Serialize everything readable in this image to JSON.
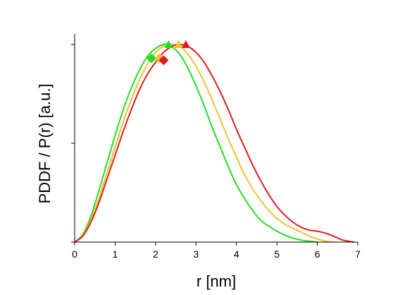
{
  "chart_data": {
    "type": "line",
    "title": "",
    "xlabel": "r [nm]",
    "ylabel": "PDDF / P(r) [a.u.]",
    "xlim": [
      0,
      7
    ],
    "ylim": [
      0,
      1
    ],
    "x_ticks": [
      0,
      1,
      2,
      3,
      4,
      5,
      6,
      7
    ],
    "x_tick_labels": [
      "0",
      "1",
      "2",
      "3",
      "4",
      "5",
      "6",
      "7"
    ],
    "y_ticks": [
      0,
      0.5,
      1
    ],
    "y_tick_labels": [
      "",
      "",
      ""
    ],
    "grid": false,
    "legend": "none",
    "series": [
      {
        "color": "#22dd22",
        "x": [
          0,
          0.2,
          0.4,
          0.6,
          0.8,
          1.0,
          1.2,
          1.4,
          1.6,
          1.8,
          2.0,
          2.2,
          2.3,
          2.4,
          2.6,
          2.8,
          3.0,
          3.2,
          3.4,
          3.6,
          3.8,
          4.0,
          4.2,
          4.4,
          4.6,
          4.8,
          5.0,
          5.2,
          5.4,
          5.6,
          5.8,
          6.0
        ],
        "y": [
          0,
          0.04,
          0.13,
          0.26,
          0.4,
          0.54,
          0.67,
          0.78,
          0.87,
          0.94,
          0.98,
          1.0,
          1.0,
          0.99,
          0.95,
          0.88,
          0.79,
          0.69,
          0.58,
          0.48,
          0.38,
          0.29,
          0.22,
          0.16,
          0.11,
          0.08,
          0.055,
          0.035,
          0.02,
          0.01,
          0.004,
          0
        ],
        "marker_peak": {
          "shape": "triangle",
          "x": 2.32,
          "y": 1.0
        },
        "marker_diamond": {
          "shape": "diamond",
          "x": 1.9,
          "y": 0.93
        }
      },
      {
        "color": "#f0c030",
        "x": [
          0,
          0.2,
          0.4,
          0.6,
          0.8,
          1.0,
          1.2,
          1.4,
          1.6,
          1.8,
          2.0,
          2.2,
          2.4,
          2.6,
          2.8,
          3.0,
          3.2,
          3.4,
          3.6,
          3.8,
          4.0,
          4.2,
          4.4,
          4.6,
          4.8,
          5.0,
          5.2,
          5.4,
          5.6,
          5.8,
          6.0,
          6.2,
          6.4
        ],
        "y": [
          0,
          0.035,
          0.11,
          0.22,
          0.35,
          0.48,
          0.61,
          0.72,
          0.82,
          0.9,
          0.96,
          0.99,
          1.0,
          0.99,
          0.95,
          0.89,
          0.81,
          0.72,
          0.62,
          0.52,
          0.43,
          0.34,
          0.27,
          0.21,
          0.16,
          0.12,
          0.09,
          0.07,
          0.05,
          0.03,
          0.015,
          0.005,
          0
        ],
        "marker_peak": {
          "shape": "triangle",
          "x": 2.57,
          "y": 1.0
        },
        "marker_diamond": {
          "shape": "diamond",
          "x": 2.1,
          "y": 0.93
        }
      },
      {
        "color": "#dd1c1c",
        "x": [
          0,
          0.2,
          0.4,
          0.6,
          0.8,
          1.0,
          1.2,
          1.4,
          1.6,
          1.8,
          2.0,
          2.2,
          2.4,
          2.6,
          2.8,
          3.0,
          3.2,
          3.4,
          3.6,
          3.8,
          4.0,
          4.2,
          4.4,
          4.6,
          4.8,
          5.0,
          5.2,
          5.4,
          5.6,
          5.8,
          6.0,
          6.2,
          6.4,
          6.6,
          6.8,
          6.9
        ],
        "y": [
          0,
          0.03,
          0.1,
          0.2,
          0.32,
          0.44,
          0.56,
          0.67,
          0.77,
          0.85,
          0.91,
          0.96,
          0.99,
          1.0,
          0.99,
          0.96,
          0.91,
          0.84,
          0.76,
          0.67,
          0.57,
          0.48,
          0.39,
          0.31,
          0.24,
          0.18,
          0.135,
          0.1,
          0.075,
          0.06,
          0.055,
          0.045,
          0.03,
          0.012,
          0.003,
          0
        ],
        "marker_peak": {
          "shape": "triangle",
          "x": 2.75,
          "y": 1.0
        },
        "marker_diamond": {
          "shape": "diamond",
          "x": 2.2,
          "y": 0.92
        }
      }
    ]
  }
}
